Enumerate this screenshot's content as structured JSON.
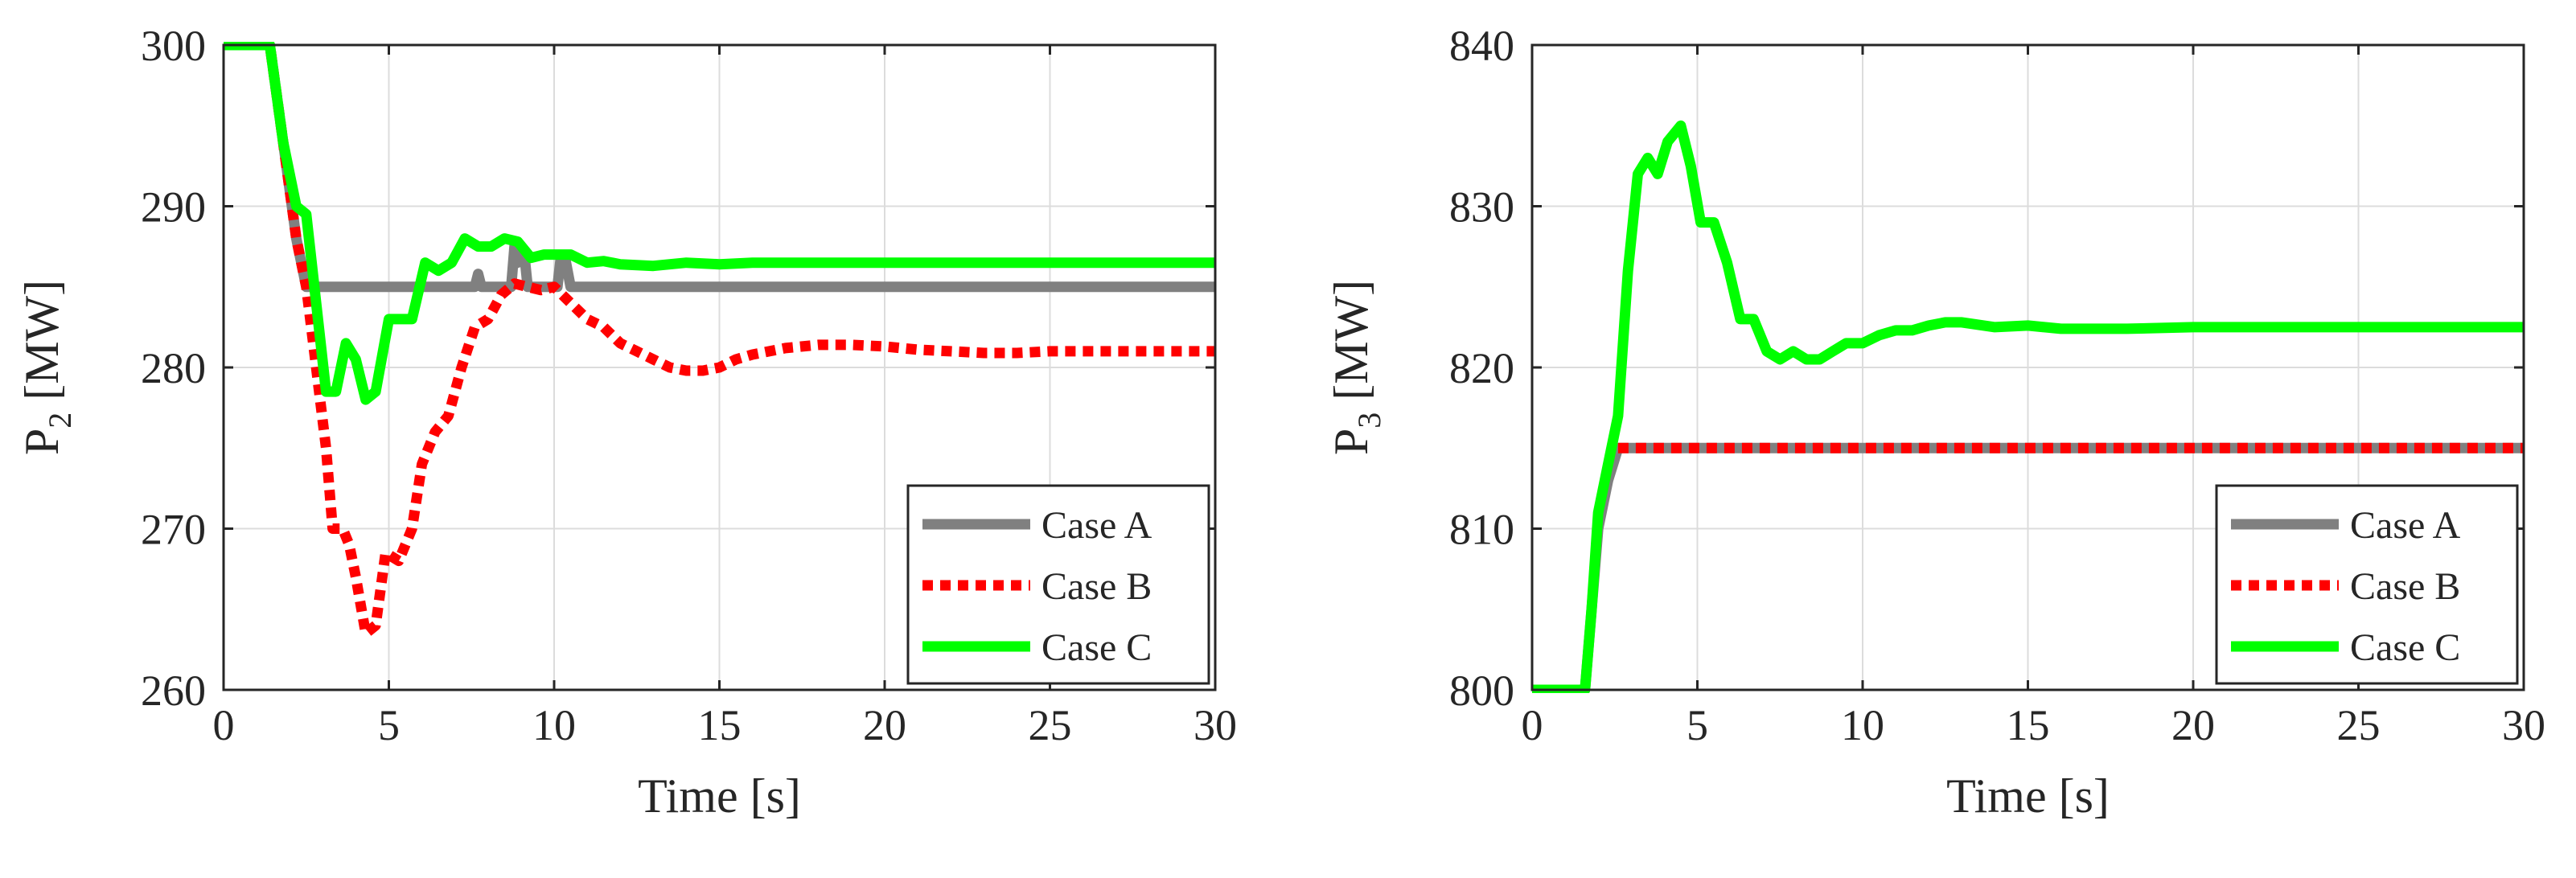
{
  "chart_data": [
    {
      "type": "line",
      "title": "",
      "xlabel": "Time [s]",
      "ylabel_main": "P",
      "ylabel_sub": "2",
      "ylabel_unit": "[MW]",
      "xlim": [
        0,
        30
      ],
      "ylim": [
        260,
        300
      ],
      "xticks": [
        0,
        5,
        10,
        15,
        20,
        25,
        30
      ],
      "yticks": [
        260,
        270,
        280,
        290,
        300
      ],
      "grid": true,
      "legend_position": "bottom-right",
      "series": [
        {
          "name": "Case A",
          "color": "#808080",
          "style": "solid",
          "x": [
            0,
            1.4,
            1.8,
            2.2,
            2.5,
            7.6,
            7.7,
            7.8,
            8.7,
            8.8,
            8.9,
            9.1,
            9.2,
            10.1,
            10.2,
            10.35,
            10.5,
            30
          ],
          "y": [
            300,
            300,
            294,
            288,
            285,
            285,
            285.8,
            285,
            285,
            287.5,
            286.5,
            287,
            285,
            285,
            286.8,
            286.6,
            285,
            285
          ]
        },
        {
          "name": "Case B",
          "color": "#ff0000",
          "style": "dotted",
          "x": [
            0,
            1.4,
            1.8,
            2.2,
            2.5,
            2.8,
            3.1,
            3.3,
            3.6,
            3.8,
            4.0,
            4.3,
            4.6,
            4.9,
            5.3,
            5.7,
            6.0,
            6.4,
            6.8,
            7.2,
            7.6,
            8.0,
            8.4,
            8.8,
            9.2,
            9.6,
            10.0,
            10.5,
            11.0,
            11.5,
            12.0,
            12.5,
            13.0,
            13.5,
            14.0,
            14.5,
            15.0,
            15.5,
            16.0,
            17.0,
            18.0,
            19.0,
            20.0,
            21.0,
            22.0,
            23.0,
            24.0,
            25.0,
            26.0,
            27.0,
            28.0,
            29.0,
            30.0
          ],
          "y": [
            300,
            300,
            294,
            288,
            285,
            280,
            275,
            270,
            270,
            269,
            267,
            263.5,
            264,
            268.5,
            268,
            270,
            274,
            276,
            277,
            280,
            282.5,
            283,
            284.5,
            285.2,
            285,
            284.8,
            285,
            284,
            283,
            282.5,
            281.5,
            281,
            280.5,
            280,
            279.8,
            279.8,
            280,
            280.5,
            280.8,
            281.2,
            281.4,
            281.4,
            281.3,
            281.1,
            281.0,
            280.9,
            280.9,
            281.0,
            281.0,
            281.0,
            281.0,
            281.0,
            281.0
          ]
        },
        {
          "name": "Case C",
          "color": "#00ff00",
          "style": "solid",
          "x": [
            0,
            1.4,
            1.8,
            2.2,
            2.5,
            2.8,
            3.1,
            3.4,
            3.7,
            4.0,
            4.3,
            4.6,
            5.0,
            5.3,
            5.7,
            6.1,
            6.5,
            6.9,
            7.3,
            7.7,
            8.1,
            8.5,
            8.9,
            9.3,
            9.7,
            10.1,
            10.5,
            11.0,
            11.5,
            12.0,
            13.0,
            14.0,
            15.0,
            16.0,
            18.0,
            20.0,
            25.0,
            30.0
          ],
          "y": [
            300,
            300,
            294,
            290,
            289.5,
            284,
            278.5,
            278.5,
            281.5,
            280.5,
            278,
            278.5,
            283,
            283,
            283,
            286.5,
            286,
            286.5,
            288,
            287.5,
            287.5,
            288,
            287.8,
            286.8,
            287,
            287,
            287,
            286.5,
            286.6,
            286.4,
            286.3,
            286.5,
            286.4,
            286.5,
            286.5,
            286.5,
            286.5,
            286.5
          ]
        }
      ]
    },
    {
      "type": "line",
      "title": "",
      "xlabel": "Time [s]",
      "ylabel_main": "P",
      "ylabel_sub": "3",
      "ylabel_unit": "[MW]",
      "xlim": [
        0,
        30
      ],
      "ylim": [
        800,
        840
      ],
      "xticks": [
        0,
        5,
        10,
        15,
        20,
        25,
        30
      ],
      "yticks": [
        800,
        810,
        820,
        830,
        840
      ],
      "grid": true,
      "legend_position": "bottom-right",
      "series": [
        {
          "name": "Case A",
          "color": "#808080",
          "style": "solid",
          "x": [
            0,
            1.6,
            1.8,
            2.0,
            2.3,
            2.6,
            30
          ],
          "y": [
            800,
            800,
            805,
            810,
            813,
            815,
            815
          ]
        },
        {
          "name": "Case B",
          "color": "#ff0000",
          "style": "dotted",
          "x": [
            2.6,
            30
          ],
          "y": [
            815,
            815
          ]
        },
        {
          "name": "Case C",
          "color": "#00ff00",
          "style": "solid",
          "x": [
            0,
            1.6,
            1.8,
            2.0,
            2.3,
            2.6,
            2.9,
            3.2,
            3.5,
            3.8,
            4.1,
            4.5,
            4.8,
            5.1,
            5.5,
            5.9,
            6.3,
            6.7,
            7.1,
            7.5,
            7.9,
            8.3,
            8.7,
            9.1,
            9.5,
            10.0,
            10.5,
            11.0,
            11.5,
            12.0,
            12.5,
            13.0,
            14.0,
            15.0,
            16.0,
            18.0,
            20.0,
            25.0,
            30.0
          ],
          "y": [
            800,
            800,
            805,
            811,
            814,
            817,
            826,
            832,
            833,
            832,
            834,
            835,
            832.5,
            829,
            829,
            826.5,
            823,
            823,
            821,
            820.5,
            821,
            820.5,
            820.5,
            821,
            821.5,
            821.5,
            822,
            822.3,
            822.3,
            822.6,
            822.8,
            822.8,
            822.5,
            822.6,
            822.4,
            822.4,
            822.5,
            822.5,
            822.5
          ]
        }
      ]
    }
  ]
}
